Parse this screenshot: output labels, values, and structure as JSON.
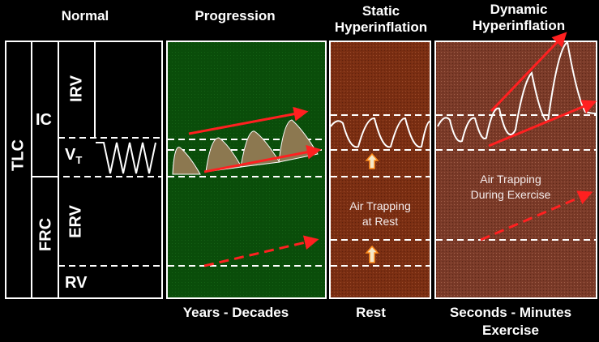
{
  "headers": {
    "normal": "Normal",
    "progression": "Progression",
    "static_line1": "Static",
    "static_line2": "Hyperinflation",
    "dynamic_line1": "Dynamic",
    "dynamic_line2": "Hyperinflation"
  },
  "volumes": {
    "tlc": "TLC",
    "ic": "IC",
    "irv": "IRV",
    "vt_main": "V",
    "vt_sub": "T",
    "frc": "FRC",
    "erv": "ERV",
    "rv": "RV"
  },
  "panel_labels": {
    "static_line1": "Air Trapping",
    "static_line2": "at Rest",
    "dynamic_line1": "Air Trapping",
    "dynamic_line2": "During Exercise"
  },
  "footers": {
    "progression": "Years - Decades",
    "static": "Rest",
    "dynamic_line1": "Seconds - Minutes",
    "dynamic_line2": "Exercise"
  },
  "colors": {
    "progression_bg": "#0a4d0a",
    "static_bg": "#7a2e12",
    "dynamic_bg": "#7a3a28",
    "arrow_red": "#ff2020",
    "up_arrow_fill": "#f5e8c8",
    "up_arrow_stroke": "#ff8c1a",
    "tan_fill": "#8c7850"
  }
}
